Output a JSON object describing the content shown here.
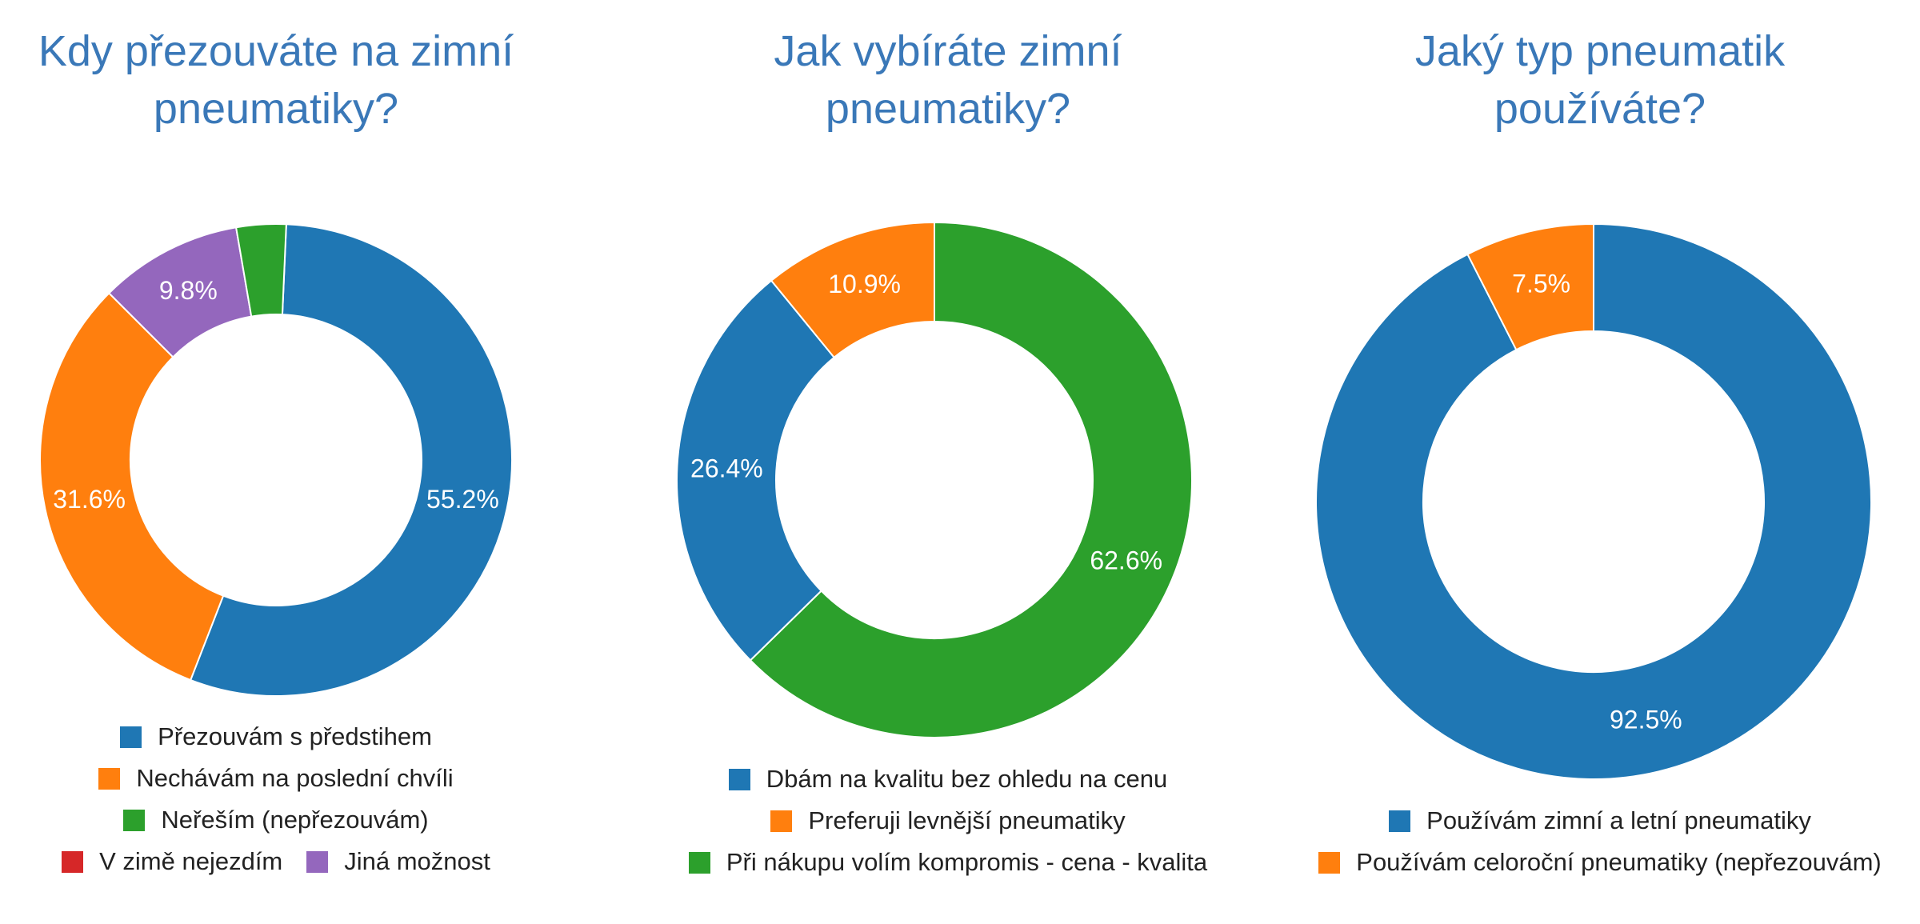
{
  "chart_data": [
    {
      "type": "pie",
      "title_lines": [
        "Kdy přezouváte na zimní",
        "pneumatiky?"
      ],
      "slices": [
        {
          "label": "Přezouvám s předstihem",
          "value": 55.2,
          "value_label": "55.2%",
          "color": "#1f77b4"
        },
        {
          "label": "Nechávám na poslední chvíli",
          "value": 31.6,
          "value_label": "31.6%",
          "color": "#ff7f0e"
        },
        {
          "label": "Jiná možnost",
          "value": 9.8,
          "value_label": "9.8%",
          "color": "#9467bd"
        },
        {
          "label": "V zimě nejezdím",
          "value": 0,
          "value_label": "",
          "color": "#d62728"
        },
        {
          "label": "Neřeším (nepřezouvám)",
          "value": 3.4,
          "value_label": "",
          "color": "#2ca02c"
        }
      ],
      "legend_rows": [
        [
          "Přezouvám s předstihem"
        ],
        [
          "Nechávám na poslední chvíli"
        ],
        [
          "Neřeším (nepřezouvám)"
        ],
        [
          "V zimě nejezdím",
          "Jiná možnost"
        ]
      ]
    },
    {
      "type": "pie",
      "title_lines": [
        "Jak vybíráte zimní",
        "pneumatiky?"
      ],
      "slices": [
        {
          "label": "Při nákupu volím kompromis - cena - kvalita",
          "value": 62.6,
          "value_label": "62.6%",
          "color": "#2ca02c"
        },
        {
          "label": "Dbám na kvalitu bez ohledu na cenu",
          "value": 26.4,
          "value_label": "26.4%",
          "color": "#1f77b4"
        },
        {
          "label": "Preferuji levnější pneumatiky",
          "value": 10.9,
          "value_label": "10.9%",
          "color": "#ff7f0e"
        }
      ],
      "legend_rows": [
        [
          "Dbám na kvalitu bez ohledu na cenu"
        ],
        [
          "Preferuji levnější pneumatiky"
        ],
        [
          "Při nákupu volím kompromis - cena - kvalita"
        ]
      ]
    },
    {
      "type": "pie",
      "title_lines": [
        "Jaký typ pneumatik",
        "používáte?"
      ],
      "slices": [
        {
          "label": "Používám zimní a letní pneumatiky",
          "value": 92.5,
          "value_label": "92.5%",
          "color": "#1f77b4"
        },
        {
          "label": "Používám celoroční pneumatiky (nepřezouvám)",
          "value": 7.5,
          "value_label": "7.5%",
          "color": "#ff7f0e"
        }
      ],
      "legend_rows": [
        [
          "Používám zimní a letní pneumatiky"
        ],
        [
          "Používám celoroční pneumatiky (nepřezouvám)"
        ]
      ]
    }
  ]
}
